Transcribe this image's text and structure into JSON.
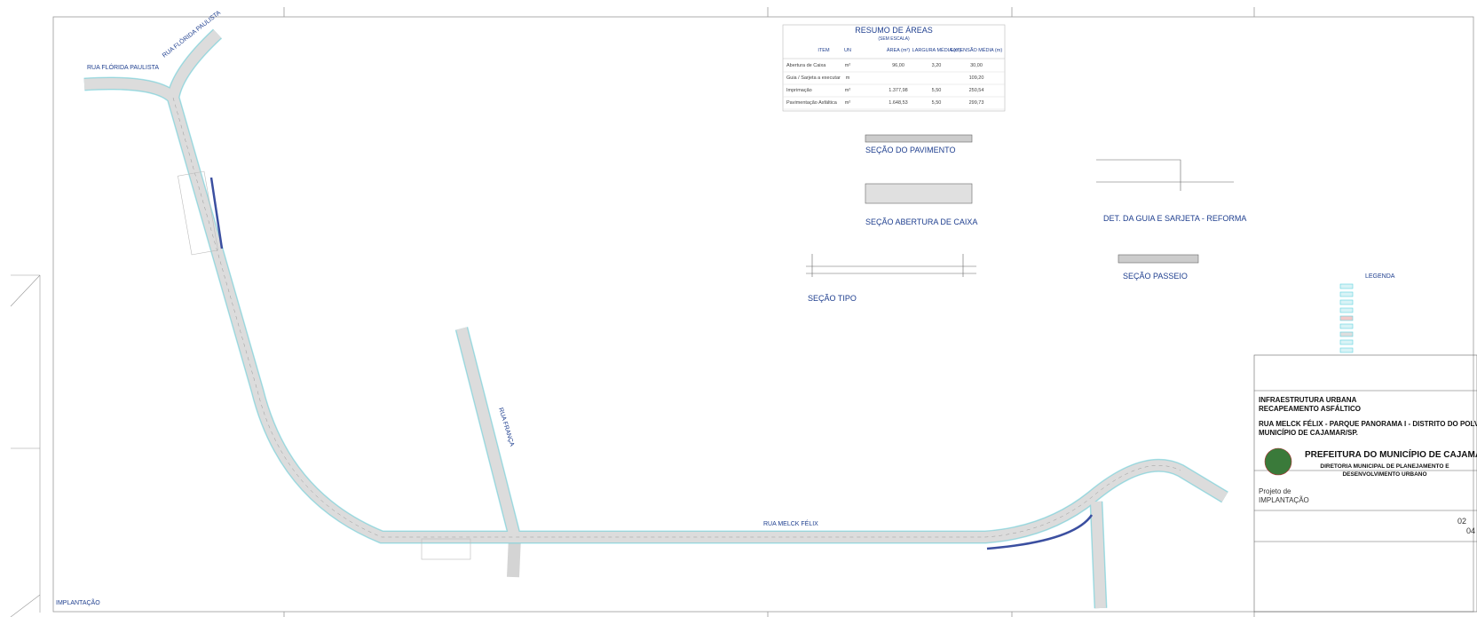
{
  "plan": {
    "streets": [
      "RUA FLÓRIDA PAULISTA",
      "RUA FLÓRIDA PAULISTA",
      "RUA FRANÇA",
      "RUA MELCK FÉLIX"
    ],
    "label": "IMPLANTAÇÃO"
  },
  "table": {
    "title": "RESUMO DE ÁREAS",
    "subtitle": "(SEM ESCALA)",
    "header": [
      "ITEM",
      "UN",
      "ÁREA (m²)",
      "LARGURA MÉDIA (m)",
      "EXTENSÃO MÉDIA (m)"
    ],
    "rows": [
      [
        "Abertura de Caixa",
        "m²",
        "96,00",
        "3,20",
        "30,00"
      ],
      [
        "Guia / Sarjeta a executar",
        "m",
        "109,20"
      ],
      [
        "Imprimação",
        "m²",
        "1.377,98",
        "5,50",
        "250,54"
      ],
      [
        "Pavimentação Asfáltica",
        "m²",
        "1.648,53",
        "5,50",
        "299,73"
      ]
    ]
  },
  "sections": [
    "SEÇÃO DO PAVIMENTO",
    "SEÇÃO ABERTURA DE CAIXA",
    "DET. DA GUIA E SARJETA - REFORMA",
    "SEÇÃO PASSEIO",
    "SEÇÃO TIPO"
  ],
  "legend": {
    "title": "LEGENDA"
  },
  "title_block": {
    "lines": [
      "INFRAESTRUTURA URBANA",
      "RECAPEAMENTO ASFÁLTICO",
      "RUA MELCK FÉLIX - PARQUE PANORAMA I - DISTRITO DO POLVILHO",
      "MUNICÍPIO DE CAJAMAR/SP."
    ],
    "org": "PREFEITURA DO MUNICÍPIO DE CAJAMAR",
    "dept": [
      "DIRETORIA MUNICIPAL DE PLANEJAMENTO E",
      "DESENVOLVIMENTO URBANO"
    ],
    "subject": [
      "Projeto de",
      "IMPLANTAÇÃO"
    ],
    "sheet": "02",
    "total": "04"
  }
}
